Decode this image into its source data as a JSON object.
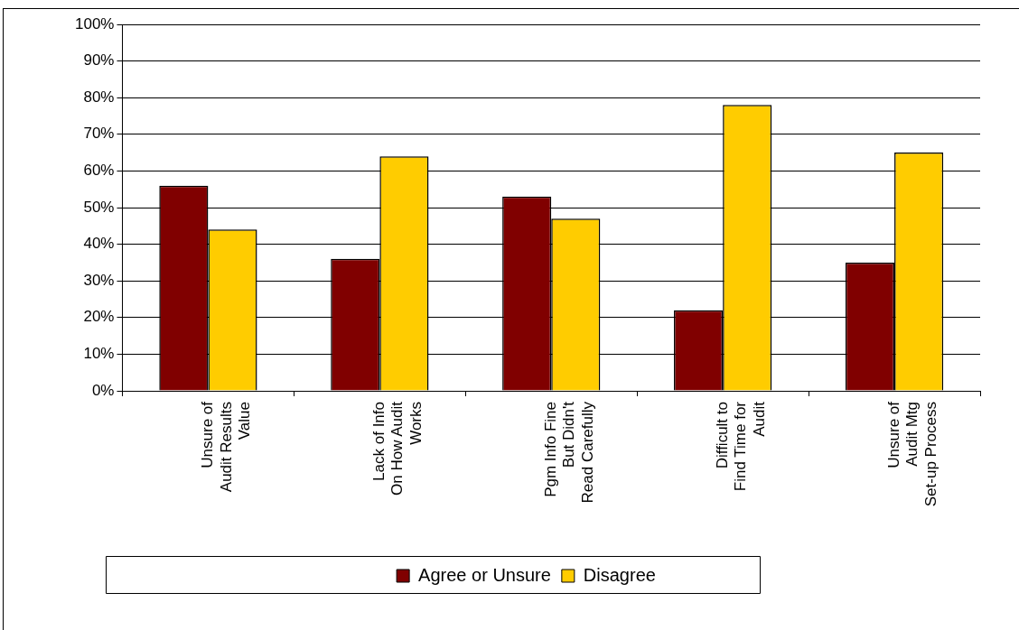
{
  "chart_data": {
    "type": "bar",
    "categories": [
      "Unsure of Audit Results Value",
      "Lack of Info On How Audit Works",
      "Pgm Info Fine But Didn't Read Carefully",
      "Difficult to Find Time for Audit",
      "Unsure of Audit Mtg Set-up Process"
    ],
    "series": [
      {
        "name": "Agree or Unsure",
        "color": "#800000",
        "values": [
          56,
          36,
          53,
          22,
          35
        ]
      },
      {
        "name": "Disagree",
        "color": "#ffcc00",
        "values": [
          44,
          64,
          47,
          78,
          65
        ]
      }
    ],
    "ylim": [
      0,
      100
    ],
    "yticks": [
      {
        "value": 0,
        "label": "0%"
      },
      {
        "value": 10,
        "label": "10%"
      },
      {
        "value": 20,
        "label": "20%"
      },
      {
        "value": 30,
        "label": "30%"
      },
      {
        "value": 40,
        "label": "40%"
      },
      {
        "value": 50,
        "label": "50%"
      },
      {
        "value": 60,
        "label": "60%"
      },
      {
        "value": 70,
        "label": "70%"
      },
      {
        "value": 80,
        "label": "80%"
      },
      {
        "value": 90,
        "label": "90%"
      },
      {
        "value": 100,
        "label": "100%"
      }
    ],
    "grid": "y",
    "legend": "bottom"
  }
}
